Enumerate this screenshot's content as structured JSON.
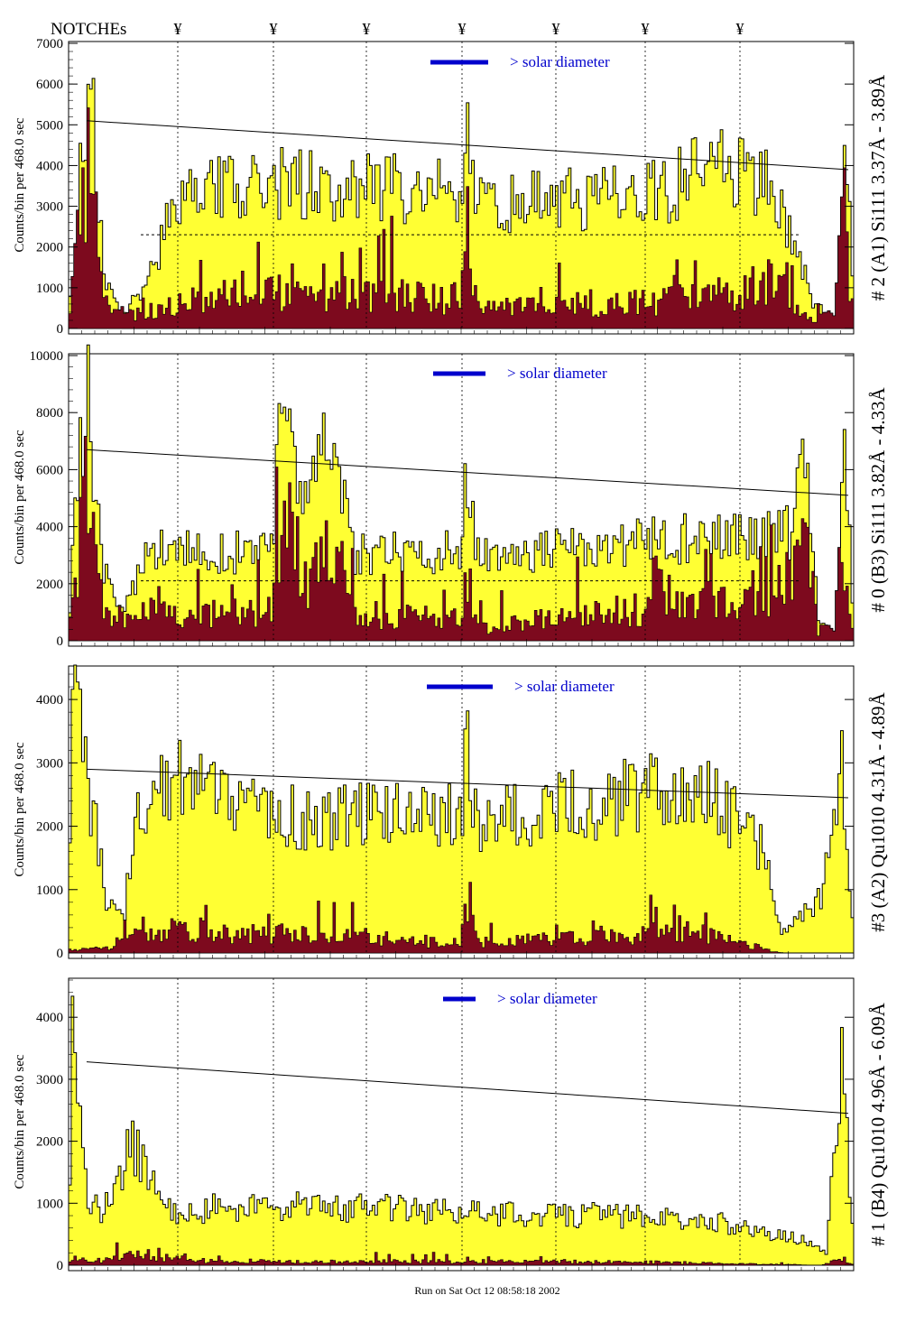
{
  "header": {
    "notches_label": "NOTCHEs",
    "notch_symbol": "¥"
  },
  "footer": {
    "timestamp_text": "Run on Sat Oct 12 08:58:18 2002"
  },
  "colors": {
    "fill": "#ffff33",
    "dark": "#7d0a1e",
    "blue": "#0000cc",
    "axis": "#000000"
  },
  "chart_data": [
    {
      "type": "bar",
      "title": "# 2 (A1) Si111 3.37Å - 3.89Å",
      "ylabel": "Counts/bin per    468.0 sec",
      "ylim": [
        0,
        7000
      ],
      "yticks": [
        "0",
        "1000",
        "2000",
        "3000",
        "4000",
        "5000",
        "6000",
        "7000"
      ],
      "legend": "> solar diameter",
      "trend_line": [
        5100,
        3900
      ],
      "baseline_level": 2300,
      "seed": 11,
      "yellow_profile": [
        [
          0,
          300
        ],
        [
          0.01,
          3000
        ],
        [
          0.03,
          6200
        ],
        [
          0.045,
          1200
        ],
        [
          0.07,
          400
        ],
        [
          0.1,
          1100
        ],
        [
          0.14,
          3400
        ],
        [
          0.3,
          3700
        ],
        [
          0.5,
          3400
        ],
        [
          0.508,
          5800
        ],
        [
          0.52,
          3100
        ],
        [
          0.75,
          3400
        ],
        [
          0.83,
          4300
        ],
        [
          0.9,
          3500
        ],
        [
          0.95,
          600
        ],
        [
          0.975,
          400
        ],
        [
          0.99,
          5200
        ],
        [
          1,
          300
        ]
      ],
      "dark_profile": [
        [
          0,
          200
        ],
        [
          0.02,
          4900
        ],
        [
          0.045,
          800
        ],
        [
          0.1,
          300
        ],
        [
          0.15,
          900
        ],
        [
          0.3,
          1100
        ],
        [
          0.5,
          900
        ],
        [
          0.508,
          3000
        ],
        [
          0.52,
          600
        ],
        [
          0.8,
          900
        ],
        [
          0.9,
          1400
        ],
        [
          0.95,
          100
        ],
        [
          0.99,
          3400
        ],
        [
          1,
          100
        ]
      ]
    },
    {
      "type": "bar",
      "title": "# 0 (B3) Si111 3.82Å - 4.33Å",
      "ylabel": "Counts/bin per    468.0 sec",
      "ylim": [
        0,
        10000
      ],
      "yticks": [
        "0",
        "2000",
        "4000",
        "6000",
        "8000",
        "10000"
      ],
      "legend": "> solar diameter",
      "trend_line": [
        6700,
        5100
      ],
      "baseline_level": 2100,
      "seed": 23,
      "yellow_profile": [
        [
          0,
          300
        ],
        [
          0.01,
          6000
        ],
        [
          0.025,
          8600
        ],
        [
          0.045,
          2500
        ],
        [
          0.07,
          900
        ],
        [
          0.1,
          3300
        ],
        [
          0.26,
          3200
        ],
        [
          0.27,
          8500
        ],
        [
          0.3,
          5000
        ],
        [
          0.34,
          7800
        ],
        [
          0.36,
          3200
        ],
        [
          0.5,
          3200
        ],
        [
          0.508,
          6500
        ],
        [
          0.52,
          3200
        ],
        [
          0.92,
          3900
        ],
        [
          0.94,
          7000
        ],
        [
          0.955,
          700
        ],
        [
          0.975,
          400
        ],
        [
          0.99,
          6800
        ],
        [
          1,
          300
        ]
      ],
      "dark_profile": [
        [
          0,
          200
        ],
        [
          0.02,
          6800
        ],
        [
          0.045,
          1000
        ],
        [
          0.1,
          1200
        ],
        [
          0.26,
          1300
        ],
        [
          0.27,
          6300
        ],
        [
          0.3,
          2500
        ],
        [
          0.34,
          5500
        ],
        [
          0.36,
          1200
        ],
        [
          0.5,
          900
        ],
        [
          0.508,
          3300
        ],
        [
          0.52,
          600
        ],
        [
          0.9,
          2000
        ],
        [
          0.94,
          4800
        ],
        [
          0.955,
          200
        ],
        [
          0.99,
          5200
        ],
        [
          1,
          100
        ]
      ]
    },
    {
      "type": "bar",
      "title": "#3 (A2) Qu1010 4.31Å - 4.89Å",
      "ylabel": "Counts/bin per    468.0 sec",
      "ylim": [
        0,
        4500
      ],
      "yticks": [
        "0",
        "1000",
        "2000",
        "3000",
        "4000"
      ],
      "legend": "> solar diameter",
      "trend_line": [
        2900,
        2450
      ],
      "baseline_level": null,
      "seed": 37,
      "yellow_profile": [
        [
          0,
          500
        ],
        [
          0.005,
          3900
        ],
        [
          0.015,
          3600
        ],
        [
          0.03,
          2400
        ],
        [
          0.05,
          800
        ],
        [
          0.07,
          500
        ],
        [
          0.08,
          1700
        ],
        [
          0.1,
          2700
        ],
        [
          0.15,
          2900
        ],
        [
          0.25,
          2200
        ],
        [
          0.5,
          2300
        ],
        [
          0.508,
          3400
        ],
        [
          0.52,
          2200
        ],
        [
          0.8,
          2700
        ],
        [
          0.88,
          1800
        ],
        [
          0.91,
          300
        ],
        [
          0.96,
          900
        ],
        [
          0.985,
          3000
        ],
        [
          1,
          200
        ]
      ],
      "dark_profile": [
        [
          0,
          50
        ],
        [
          0.05,
          100
        ],
        [
          0.1,
          500
        ],
        [
          0.5,
          200
        ],
        [
          0.508,
          1200
        ],
        [
          0.52,
          200
        ],
        [
          0.8,
          400
        ],
        [
          0.91,
          0
        ],
        [
          1,
          0
        ]
      ]
    },
    {
      "type": "bar",
      "title": "# 1 (B4) Qu1010 4.96Å - 6.09Å",
      "ylabel": "Counts/bin per    468.0 sec",
      "ylim": [
        0,
        4600
      ],
      "yticks": [
        "0",
        "1000",
        "2000",
        "3000",
        "4000"
      ],
      "legend": "> solar diameter",
      "trend_line": [
        3280,
        2450
      ],
      "baseline_level": null,
      "seed": 53,
      "yellow_profile": [
        [
          0,
          400
        ],
        [
          0.005,
          3600
        ],
        [
          0.015,
          3200
        ],
        [
          0.025,
          1200
        ],
        [
          0.04,
          800
        ],
        [
          0.06,
          1200
        ],
        [
          0.08,
          2000
        ],
        [
          0.1,
          1500
        ],
        [
          0.13,
          900
        ],
        [
          0.25,
          1000
        ],
        [
          0.5,
          900
        ],
        [
          0.6,
          850
        ],
        [
          0.8,
          800
        ],
        [
          0.94,
          400
        ],
        [
          0.965,
          200
        ],
        [
          0.985,
          3400
        ],
        [
          1,
          200
        ]
      ],
      "dark_profile": [
        [
          0,
          20
        ],
        [
          0.01,
          200
        ],
        [
          0.03,
          50
        ],
        [
          0.08,
          200
        ],
        [
          0.2,
          60
        ],
        [
          0.5,
          80
        ],
        [
          0.75,
          60
        ],
        [
          0.96,
          0
        ],
        [
          0.985,
          150
        ],
        [
          1,
          0
        ]
      ]
    }
  ]
}
